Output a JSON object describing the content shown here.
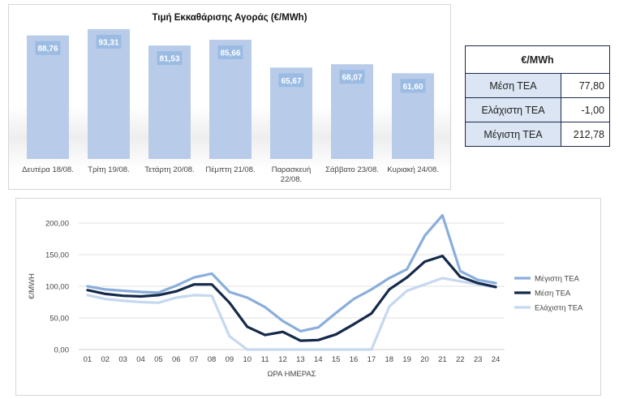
{
  "bar_chart": {
    "title": "Τιμή Εκκαθάρισης Αγοράς (€/MWh)",
    "bar_color": "#b8cce9",
    "label_bg": "#9bbbe3"
  },
  "stats_table": {
    "header": "€/MWh",
    "rows": [
      {
        "name": "Μέση ΤΕΑ",
        "value": "77,80"
      },
      {
        "name": "Ελάχιστη ΤΕΑ",
        "value": "-1,00"
      },
      {
        "name": "Μέγιστη ΤΕΑ",
        "value": "212,78"
      }
    ]
  },
  "chart_data": [
    {
      "type": "bar",
      "title": "Τιμή Εκκαθάρισης Αγοράς (€/MWh)",
      "categories": [
        "Δευτέρα 18/08.",
        "Τρίτη 19/08.",
        "Τετάρτη 20/08.",
        "Πέμπτη 21/08.",
        "Παρασκευή 22/08.",
        "Σάββατο 23/08.",
        "Κυριακή 24/08."
      ],
      "category_lines": [
        [
          "Δευτέρα 18/08."
        ],
        [
          "Τρίτη 19/08."
        ],
        [
          "Τετάρτη 20/08."
        ],
        [
          "Πέμπτη 21/08."
        ],
        [
          "Παρασκευή",
          "22/08."
        ],
        [
          "Σάββατο 23/08."
        ],
        [
          "Κυριακή 24/08."
        ]
      ],
      "values": [
        88.76,
        93.31,
        81.53,
        85.66,
        65.67,
        68.07,
        61.6
      ],
      "value_labels": [
        "88,76",
        "93,31",
        "81,53",
        "85,66",
        "65,67",
        "68,07",
        "61,60"
      ],
      "ylim": [
        0,
        95
      ],
      "grid": false,
      "legend": "none"
    },
    {
      "type": "line",
      "title": "",
      "xlabel": "ΩΡΑ ΗΜΕΡΑΣ",
      "ylabel": "€/MWH",
      "x": [
        "01",
        "02",
        "03",
        "04",
        "05",
        "06",
        "07",
        "08",
        "09",
        "10",
        "11",
        "12",
        "13",
        "14",
        "15",
        "16",
        "17",
        "18",
        "19",
        "20",
        "21",
        "22",
        "23",
        "24"
      ],
      "ylim": [
        0,
        200
      ],
      "yticks": [
        "0,00",
        "50,00",
        "100,00",
        "150,00",
        "200,00"
      ],
      "grid": true,
      "legend": "right",
      "series": [
        {
          "name": "Μέγιστη ΤΕΑ",
          "color": "#8aaedb",
          "values": [
            100,
            95,
            93,
            91,
            90,
            101,
            114,
            120,
            91,
            82,
            67,
            45,
            29,
            35,
            58,
            80,
            95,
            113,
            127,
            180,
            212,
            124,
            110,
            105
          ]
        },
        {
          "name": "Μέση ΤΕΑ",
          "color": "#152a4a",
          "values": [
            94,
            88,
            85,
            84,
            86,
            92,
            103,
            103,
            74,
            36,
            23,
            28,
            14,
            15,
            24,
            40,
            57,
            95,
            114,
            139,
            148,
            115,
            105,
            99
          ]
        },
        {
          "name": "Ελάχιστη ΤΕΑ",
          "color": "#c6d8ef",
          "values": [
            86,
            80,
            77,
            75,
            74,
            82,
            86,
            85,
            21,
            0,
            0,
            0,
            0,
            0,
            0,
            0,
            0,
            68,
            93,
            103,
            113,
            108,
            103,
            98
          ]
        }
      ]
    }
  ]
}
